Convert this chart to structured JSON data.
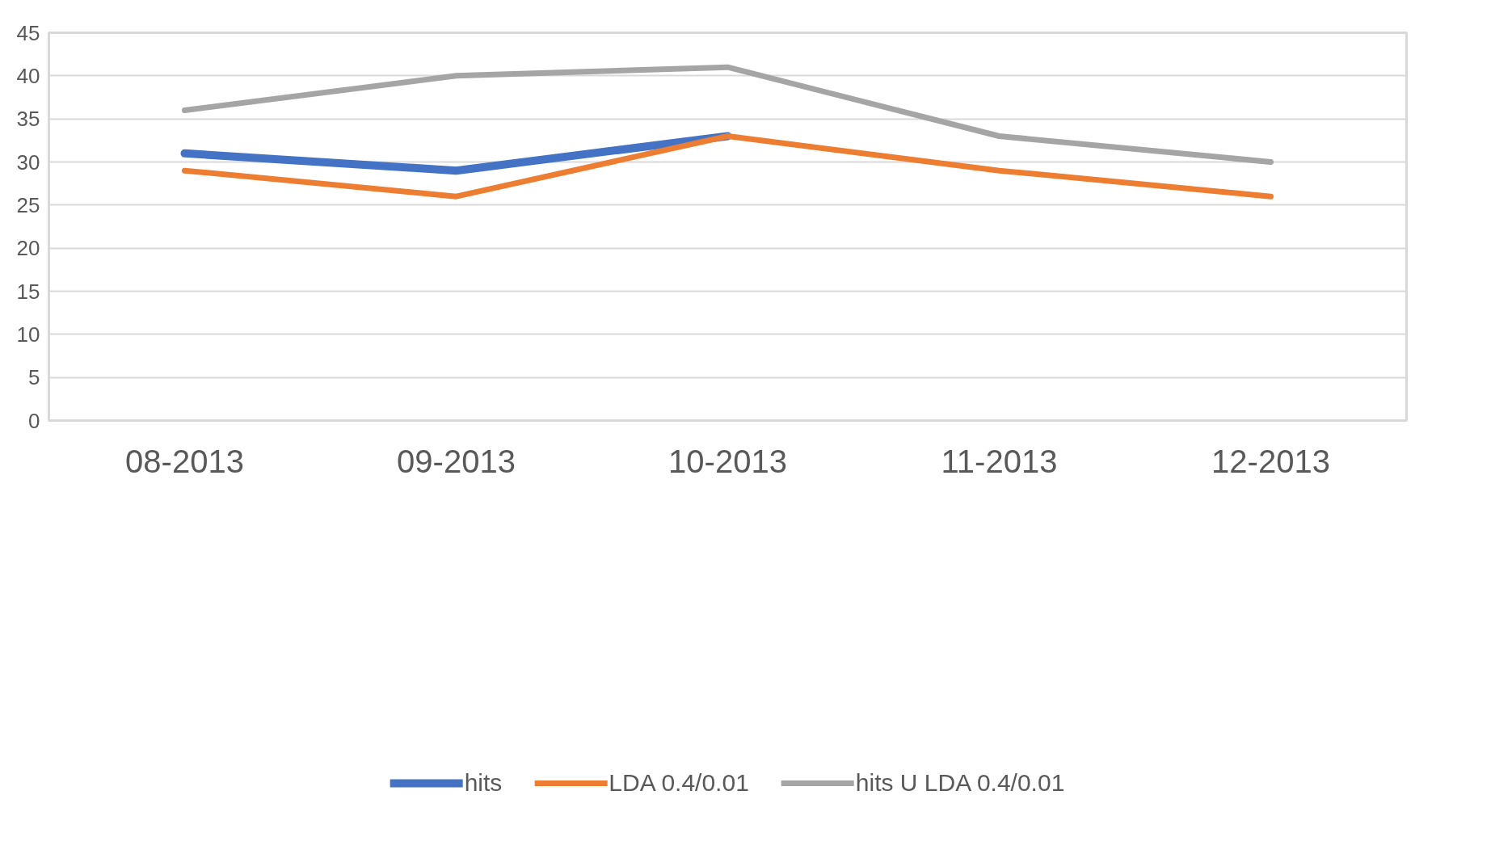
{
  "chart_data": {
    "type": "line",
    "categories": [
      "08-2013",
      "09-2013",
      "10-2013",
      "11-2013",
      "12-2013"
    ],
    "series": [
      {
        "name": "hits",
        "color": "#4472c4",
        "values": [
          31,
          29,
          33,
          null,
          null
        ]
      },
      {
        "name": "LDA 0.4/0.01",
        "color": "#ed7d31",
        "values": [
          29,
          26,
          33,
          29,
          26
        ]
      },
      {
        "name": "hits U LDA 0.4/0.01",
        "color": "#a5a5a5",
        "values": [
          36,
          40,
          41,
          33,
          30
        ]
      }
    ],
    "ylim": [
      0,
      45
    ],
    "yticks": [
      0,
      5,
      10,
      15,
      20,
      25,
      30,
      35,
      40,
      45
    ],
    "grid": "y",
    "legend": "bottom",
    "marker": "none",
    "line_style": "solid"
  }
}
